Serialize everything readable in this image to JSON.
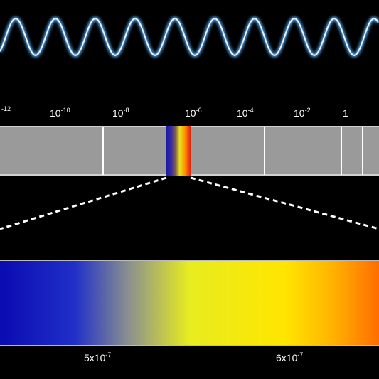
{
  "scale_labels": [
    {
      "sup": "-12"
    },
    {
      "base": "10",
      "sup": "-10"
    },
    {
      "base": "10",
      "sup": "-8"
    },
    {
      "base": "10",
      "sup": "-6"
    },
    {
      "base": "10",
      "sup": "-4"
    },
    {
      "base": "10",
      "sup": "-2"
    },
    {
      "base": "1"
    }
  ],
  "visible_labels": [
    {
      "base": "5x10",
      "sup": "-7"
    },
    {
      "base": "6x10",
      "sup": "-7"
    }
  ]
}
